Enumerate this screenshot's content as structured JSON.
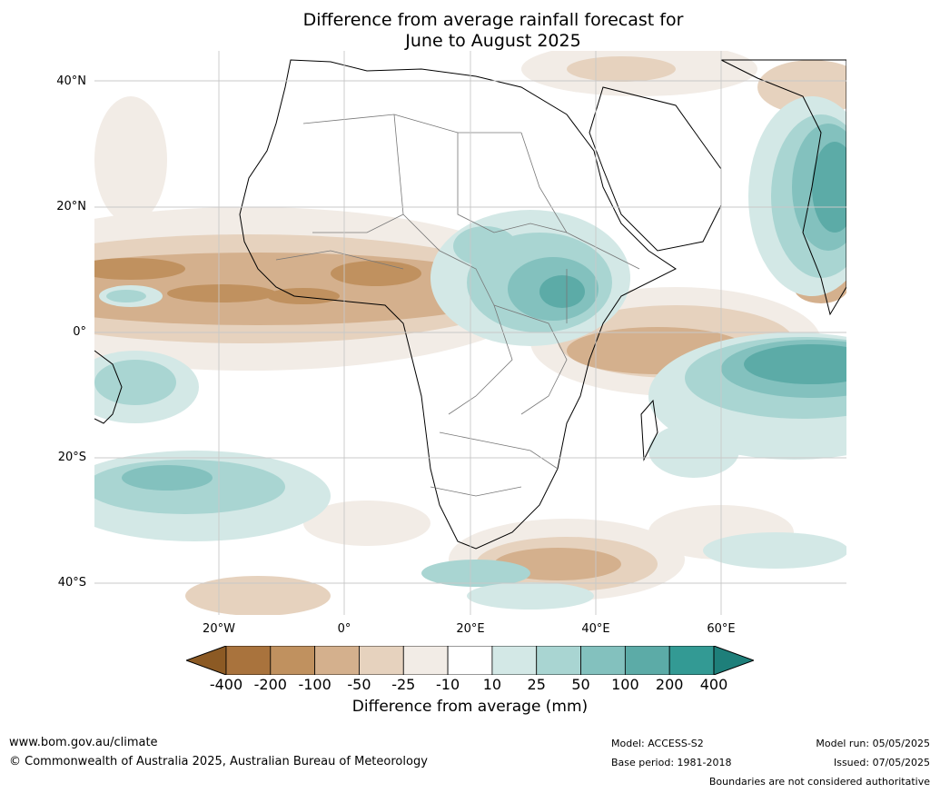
{
  "title": {
    "line1": "Difference from average rainfall forecast for",
    "line2": "June to August 2025"
  },
  "map": {
    "lat_labels": [
      "40°N",
      "20°N",
      "0°",
      "20°S",
      "40°S"
    ],
    "lon_labels": [
      "20°W",
      "0°",
      "20°E",
      "40°E",
      "60°E"
    ],
    "gridline_color": "#c8c8c8"
  },
  "colorbar": {
    "ticks": [
      "-400",
      "-200",
      "-100",
      "-50",
      "-25",
      "-10",
      "10",
      "25",
      "50",
      "100",
      "200",
      "400"
    ],
    "colors": [
      "#8c5a24",
      "#a9733d",
      "#c0915f",
      "#d4b08d",
      "#e6d2be",
      "#f2ece6",
      "#ffffff",
      "#d3e8e6",
      "#a9d5d2",
      "#83c1be",
      "#5caba7",
      "#339a94",
      "#1e7f7a"
    ],
    "label": "Difference from average (mm)"
  },
  "footer": {
    "website": "www.bom.gov.au/climate",
    "copyright": "© Commonwealth of Australia 2025, Australian Bureau of Meteorology",
    "model": "Model: ACCESS-S2",
    "base_period": "Base period: 1981-2018",
    "model_run": "Model run: 05/05/2025",
    "issued": "Issued: 07/05/2025",
    "disclaimer": "Boundaries are not considered authoritative"
  }
}
